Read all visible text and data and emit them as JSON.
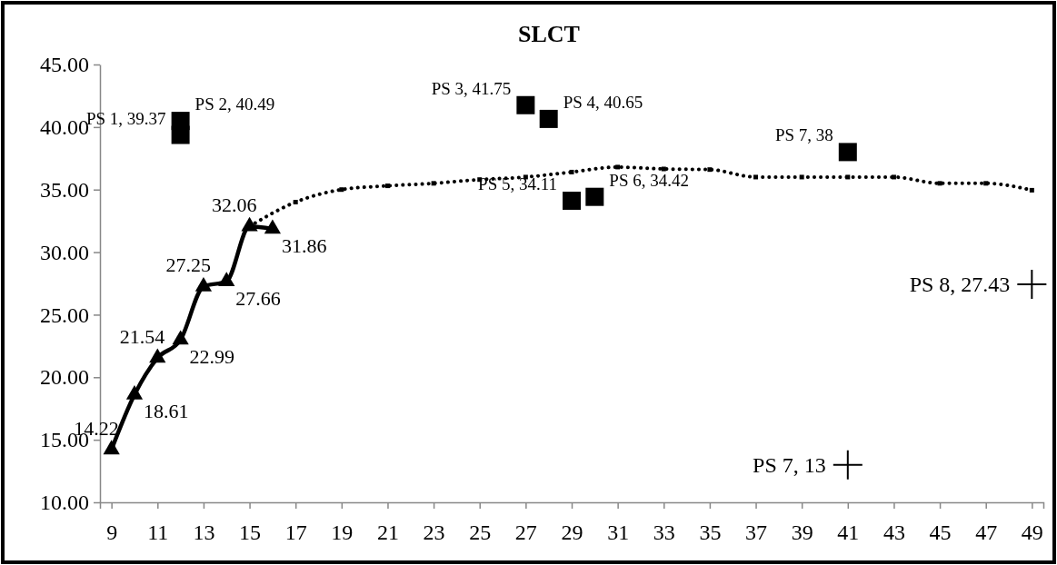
{
  "chart_data": {
    "type": "line",
    "title": "SLCT",
    "xlim": [
      8.5,
      49.5
    ],
    "xticks": [
      9,
      11,
      13,
      15,
      17,
      19,
      21,
      23,
      25,
      27,
      29,
      31,
      33,
      35,
      37,
      39,
      41,
      43,
      45,
      47,
      49
    ],
    "ylim": [
      10,
      45
    ],
    "yticks": [
      {
        "value": 10,
        "label": "10.00"
      },
      {
        "value": 15,
        "label": "15.00"
      },
      {
        "value": 20,
        "label": "20.00"
      },
      {
        "value": 25,
        "label": "25.00"
      },
      {
        "value": 30,
        "label": "30.00"
      },
      {
        "value": 35,
        "label": "35.00"
      },
      {
        "value": 40,
        "label": "40.00"
      },
      {
        "value": 45,
        "label": "45.00"
      }
    ],
    "grid": false,
    "series": [
      {
        "color": "#000000",
        "marker": "triangle",
        "line_style": "solid",
        "x": [
          9,
          10,
          11,
          12,
          13,
          14,
          15,
          16
        ],
        "values": [
          14.22,
          18.61,
          21.54,
          22.99,
          27.25,
          27.66,
          32.06,
          31.86
        ],
        "value_labels": [
          "14.22",
          "18.61",
          "21.54",
          "22.99",
          "27.25",
          "27.66",
          "32.06",
          "31.86"
        ]
      },
      {
        "color": "#000000",
        "marker": "square",
        "line_style": "dotted",
        "x": [
          15,
          17,
          19,
          21,
          23,
          25,
          27,
          29,
          31,
          33,
          35,
          37,
          39,
          41,
          43,
          45,
          47,
          49
        ],
        "values": [
          32.06,
          34.0,
          35.0,
          35.3,
          35.5,
          35.8,
          36.0,
          36.4,
          36.8,
          36.65,
          36.6,
          36.0,
          36.0,
          36.0,
          36.0,
          35.5,
          35.5,
          34.95
        ]
      },
      {
        "type": "scatter",
        "color": "#000000",
        "marker": "square",
        "x": [
          12,
          12,
          27,
          28,
          29,
          30,
          41
        ],
        "values": [
          39.37,
          40.49,
          41.75,
          40.65,
          34.11,
          34.42,
          38
        ],
        "value_labels": [
          "PS 1, 39.37",
          "PS 2, 40.49",
          "PS 3, 41.75",
          "PS 4, 40.65",
          "PS 5, 34.11",
          "PS 6, 34.42",
          "PS 7, 38"
        ]
      },
      {
        "type": "scatter",
        "color": "#000000",
        "marker": "cross",
        "x": [
          41,
          49
        ],
        "values": [
          13,
          27.43
        ],
        "value_labels": [
          "PS 7, 13",
          "PS 8, 27.43"
        ]
      }
    ]
  }
}
